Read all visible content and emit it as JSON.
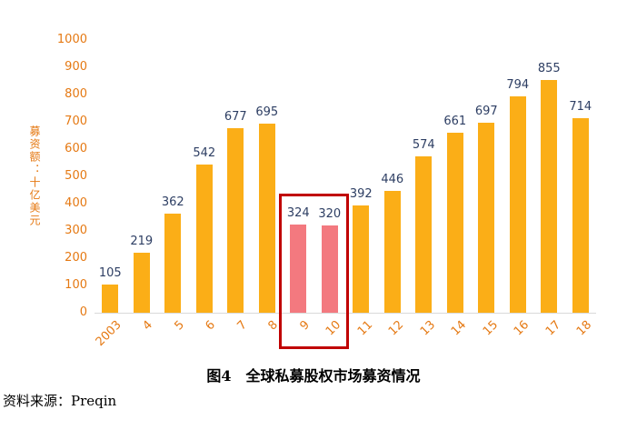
{
  "chart_data": {
    "type": "bar",
    "title": "图4　全球私募股权市场募资情况",
    "ylabel": "募资额：十亿美元",
    "xlabel": "",
    "categories": [
      "2003",
      "4",
      "5",
      "6",
      "7",
      "8",
      "9",
      "10",
      "11",
      "12",
      "13",
      "14",
      "15",
      "16",
      "17",
      "18"
    ],
    "values": [
      105,
      219,
      362,
      542,
      677,
      695,
      324,
      320,
      392,
      446,
      574,
      661,
      697,
      794,
      855,
      714
    ],
    "ylim": [
      0,
      1000
    ],
    "ytick_step": 100,
    "grid": false,
    "legend": "none",
    "bar_color": "#FBAE17",
    "highlight_color": "#F3797F",
    "highlight_categories": [
      "9",
      "10"
    ],
    "highlight_box_color": "#C00000",
    "value_label_color": "#2D3E63",
    "axis_label_color": "#E57913"
  },
  "caption": "图4　全球私募股权市场募资情况",
  "source": "资料来源：Preqin"
}
